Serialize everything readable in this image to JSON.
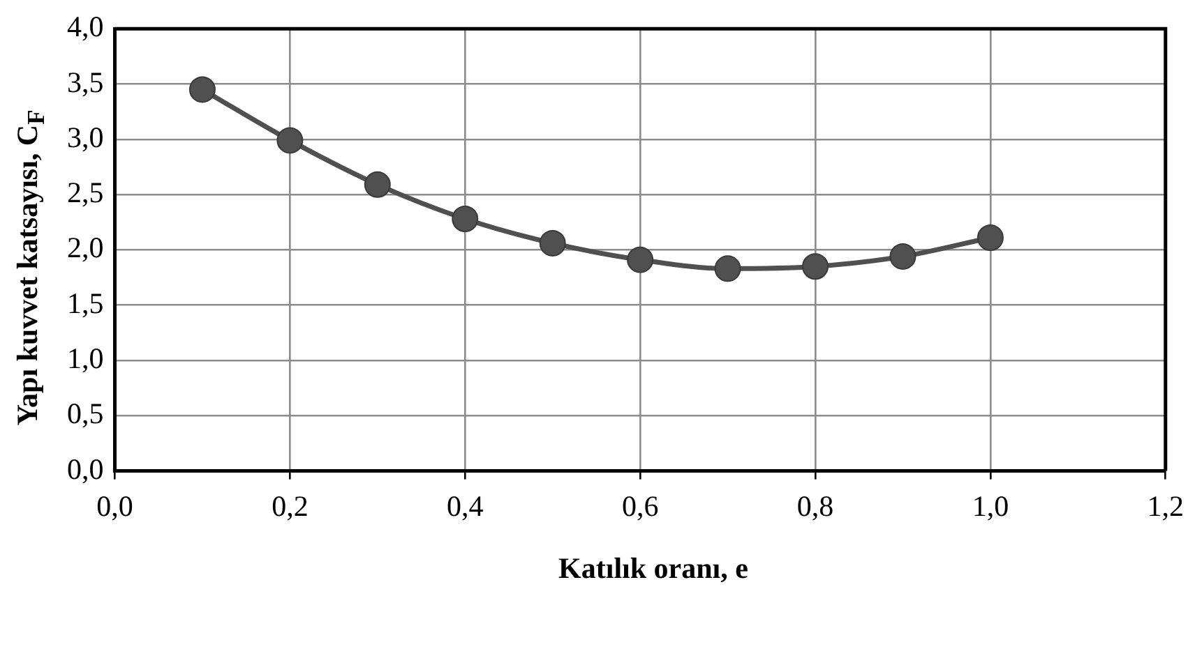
{
  "chart_data": {
    "type": "line",
    "xlabel": "Katılık oranı, e",
    "ylabel": "Yapı kuvvet katsayısı, C$_{F}$",
    "x": [
      0.1,
      0.2,
      0.3,
      0.4,
      0.5,
      0.6,
      0.7,
      0.8,
      0.9,
      1.0
    ],
    "series": [
      {
        "color": "#505050",
        "values": [
          3.45,
          2.99,
          2.59,
          2.28,
          2.06,
          1.91,
          1.83,
          1.85,
          1.94,
          2.11
        ]
      }
    ],
    "xlim": [
      0,
      1.2
    ],
    "xticks": [
      {
        "value": 0,
        "label": "0,0"
      },
      {
        "value": 0.2,
        "label": "0,2"
      },
      {
        "value": 0.4,
        "label": "0,4"
      },
      {
        "value": 0.6,
        "label": "0,6"
      },
      {
        "value": 0.8,
        "label": "0,8"
      },
      {
        "value": 1.0,
        "label": "1,0"
      },
      {
        "value": 1.2,
        "label": "1,2"
      }
    ],
    "ylim": [
      0,
      4
    ],
    "yticks": [
      {
        "value": 0,
        "label": "0,0"
      },
      {
        "value": 0.5,
        "label": "0,5"
      },
      {
        "value": 1.0,
        "label": "1,0"
      },
      {
        "value": 1.5,
        "label": "1,5"
      },
      {
        "value": 2.0,
        "label": "2,0"
      },
      {
        "value": 2.5,
        "label": "2,5"
      },
      {
        "value": 3.0,
        "label": "3,0"
      },
      {
        "value": 3.5,
        "label": "3,5"
      },
      {
        "value": 4.0,
        "label": "4,0"
      }
    ],
    "grid": true,
    "legend": false,
    "marker": "circle",
    "line_style": "solid"
  }
}
